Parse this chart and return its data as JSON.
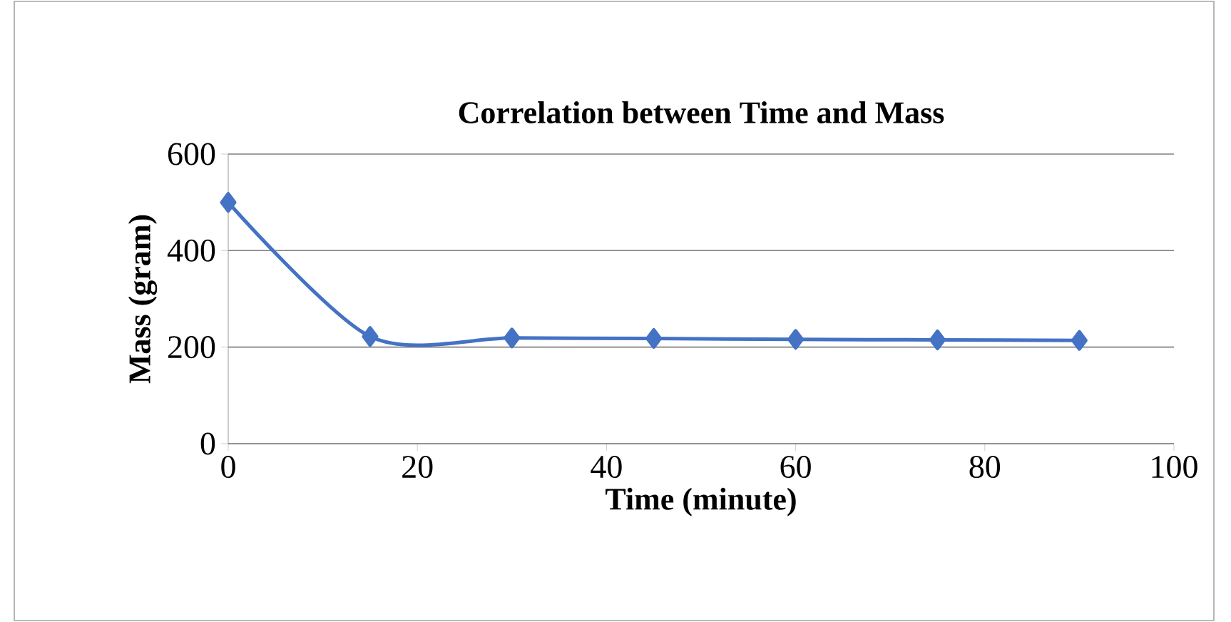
{
  "chart_data": {
    "type": "line",
    "title": "Correlation between Time and Mass",
    "xlabel": "Time (minute)",
    "ylabel": "Mass (gram)",
    "x": [
      0,
      15,
      30,
      45,
      60,
      75,
      90
    ],
    "series": [
      {
        "color": "#4472c4",
        "values": [
          500,
          222,
          219,
          218,
          216,
          215,
          214
        ]
      }
    ],
    "xlim": [
      0,
      100
    ],
    "xticks": [
      0,
      20,
      40,
      60,
      80,
      100
    ],
    "ylim": [
      0,
      600
    ],
    "yticks": [
      0,
      200,
      400,
      600
    ],
    "grid": "y",
    "marker": "diamond",
    "line_style": "solid"
  }
}
